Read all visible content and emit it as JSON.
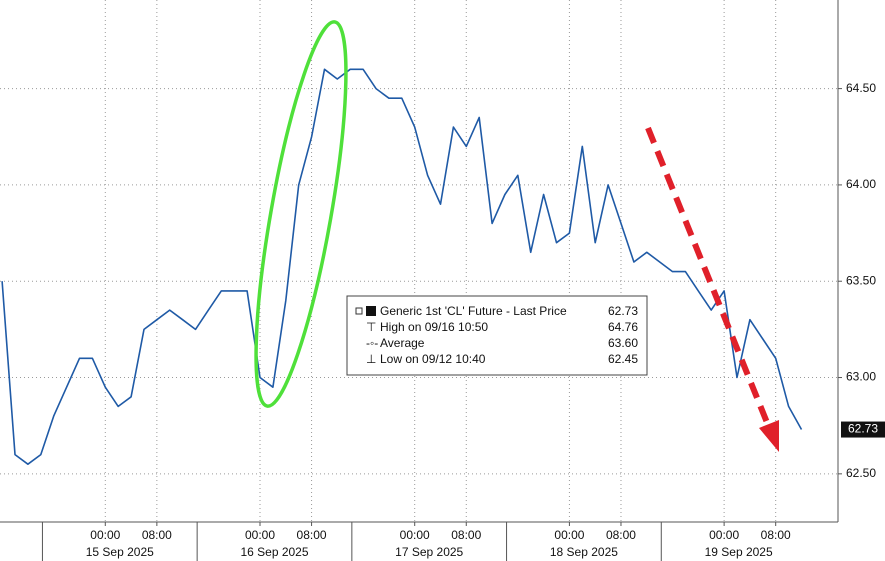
{
  "chart_data": {
    "type": "line",
    "series": [
      {
        "name": "Generic 1st 'CL' Future - Last Price",
        "color": "#1f5aa6",
        "x": [
          "2025-09-14 08:00",
          "2025-09-14 10:00",
          "2025-09-14 12:00",
          "2025-09-14 14:00",
          "2025-09-14 16:00",
          "2025-09-14 18:00",
          "2025-09-14 20:00",
          "2025-09-14 22:00",
          "2025-09-15 00:00",
          "2025-09-15 02:00",
          "2025-09-15 04:00",
          "2025-09-15 06:00",
          "2025-09-15 08:00",
          "2025-09-15 10:00",
          "2025-09-15 12:00",
          "2025-09-15 14:00",
          "2025-09-15 16:00",
          "2025-09-15 18:00",
          "2025-09-15 20:00",
          "2025-09-15 22:00",
          "2025-09-16 00:00",
          "2025-09-16 02:00",
          "2025-09-16 04:00",
          "2025-09-16 06:00",
          "2025-09-16 08:00",
          "2025-09-16 10:00",
          "2025-09-16 12:00",
          "2025-09-16 14:00",
          "2025-09-16 16:00",
          "2025-09-16 18:00",
          "2025-09-16 20:00",
          "2025-09-16 22:00",
          "2025-09-17 00:00",
          "2025-09-17 02:00",
          "2025-09-17 04:00",
          "2025-09-17 06:00",
          "2025-09-17 08:00",
          "2025-09-17 10:00",
          "2025-09-17 12:00",
          "2025-09-17 14:00",
          "2025-09-17 16:00",
          "2025-09-17 18:00",
          "2025-09-17 20:00",
          "2025-09-17 22:00",
          "2025-09-18 00:00",
          "2025-09-18 02:00",
          "2025-09-18 04:00",
          "2025-09-18 06:00",
          "2025-09-18 08:00",
          "2025-09-18 10:00",
          "2025-09-18 12:00",
          "2025-09-18 14:00",
          "2025-09-18 16:00",
          "2025-09-18 18:00",
          "2025-09-18 20:00",
          "2025-09-18 22:00",
          "2025-09-19 00:00",
          "2025-09-19 02:00",
          "2025-09-19 04:00",
          "2025-09-19 06:00",
          "2025-09-19 08:00",
          "2025-09-19 10:00",
          "2025-09-19 12:00"
        ],
        "values": [
          63.5,
          62.6,
          62.55,
          62.6,
          62.8,
          62.95,
          63.1,
          63.1,
          62.95,
          62.85,
          62.9,
          63.25,
          63.3,
          63.35,
          63.3,
          63.25,
          63.35,
          63.45,
          63.45,
          63.45,
          63.0,
          62.95,
          63.4,
          64.0,
          64.25,
          64.6,
          64.55,
          64.6,
          64.6,
          64.5,
          64.45,
          64.45,
          64.3,
          64.05,
          63.9,
          64.3,
          64.2,
          64.35,
          63.8,
          63.95,
          64.05,
          63.65,
          63.95,
          63.7,
          63.75,
          64.2,
          63.7,
          64.0,
          63.8,
          63.6,
          63.65,
          63.6,
          63.55,
          63.55,
          63.45,
          63.35,
          63.45,
          63.0,
          63.3,
          63.2,
          63.1,
          62.85,
          62.73
        ]
      }
    ],
    "xlim": [
      "2025-09-14 07:40",
      "2025-09-19 17:40"
    ],
    "xticks": [
      {
        "value": "2025-09-15 00:00",
        "label": "00:00"
      },
      {
        "value": "2025-09-15 08:00",
        "label": "08:00"
      },
      {
        "value": "2025-09-16 00:00",
        "label": "00:00"
      },
      {
        "value": "2025-09-16 08:00",
        "label": "08:00"
      },
      {
        "value": "2025-09-17 00:00",
        "label": "00:00"
      },
      {
        "value": "2025-09-17 08:00",
        "label": "08:00"
      },
      {
        "value": "2025-09-18 00:00",
        "label": "00:00"
      },
      {
        "value": "2025-09-18 08:00",
        "label": "08:00"
      },
      {
        "value": "2025-09-19 00:00",
        "label": "00:00"
      },
      {
        "value": "2025-09-19 08:00",
        "label": "08:00"
      }
    ],
    "x_date_labels": [
      {
        "value": "2025-09-15",
        "label": "15 Sep 2025"
      },
      {
        "value": "2025-09-16",
        "label": "16 Sep 2025"
      },
      {
        "value": "2025-09-17",
        "label": "17 Sep 2025"
      },
      {
        "value": "2025-09-18",
        "label": "18 Sep 2025"
      },
      {
        "value": "2025-09-19",
        "label": "19 Sep 2025"
      }
    ],
    "ylim": [
      62.25,
      64.96
    ],
    "yticks": [
      {
        "value": 62.5,
        "label": "62.50"
      },
      {
        "value": 63,
        "label": "63.00"
      },
      {
        "value": 63.5,
        "label": "63.50"
      },
      {
        "value": 64,
        "label": "64.00"
      },
      {
        "value": 64.5,
        "label": "64.50"
      }
    ],
    "grid": true,
    "legend_stats": {
      "labels": [
        "High on 09/16 10:50",
        "Average",
        "Low on 09/12 10:40"
      ],
      "values": [
        64.76,
        63.6,
        62.45
      ],
      "value_labels": [
        "64.76",
        "63.60",
        "62.45"
      ]
    }
  }
}
